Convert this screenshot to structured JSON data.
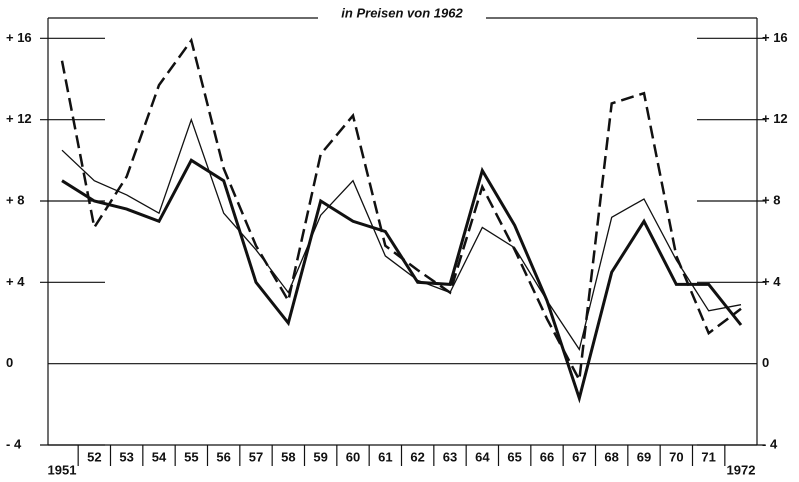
{
  "chart_data": {
    "type": "line",
    "title": "in Preisen von 1962",
    "categories": [
      "1951",
      "52",
      "53",
      "54",
      "55",
      "56",
      "57",
      "58",
      "59",
      "60",
      "61",
      "62",
      "63",
      "64",
      "65",
      "66",
      "67",
      "68",
      "69",
      "70",
      "71",
      "1972"
    ],
    "series": [
      {
        "color": "#111111",
        "line_width": 3,
        "dashed": false,
        "values": [
          9.0,
          8.0,
          7.6,
          7.0,
          10.0,
          9.0,
          4.0,
          2.0,
          8.0,
          7.0,
          6.5,
          4.0,
          3.9,
          9.5,
          6.8,
          3.1,
          -1.7,
          4.5,
          7.0,
          3.9,
          3.9,
          1.9
        ]
      },
      {
        "color": "#111111",
        "line_width": 1.3,
        "dashed": false,
        "values": [
          10.5,
          9.0,
          8.3,
          7.4,
          12.0,
          7.4,
          5.6,
          3.5,
          7.3,
          9.0,
          5.3,
          4.1,
          3.5,
          6.7,
          5.7,
          3.1,
          0.7,
          7.2,
          8.1,
          5.1,
          2.6,
          2.9
        ]
      },
      {
        "color": "#111111",
        "line_width": 2.5,
        "dashed": true,
        "values": [
          14.9,
          6.7,
          9.2,
          13.7,
          15.9,
          9.6,
          5.8,
          3.1,
          10.3,
          12.2,
          5.8,
          4.6,
          3.5,
          8.7,
          5.6,
          2.2,
          -0.8,
          12.8,
          13.3,
          5.3,
          1.5,
          2.7
        ]
      }
    ],
    "ylim": [
      -4,
      17
    ],
    "yticks": [
      {
        "value": -4,
        "label": "- 4"
      },
      0,
      {
        "value": 4,
        "label": "+ 4"
      },
      {
        "value": 8,
        "label": "+ 8"
      },
      {
        "value": 12,
        "label": "+ 12"
      },
      {
        "value": 16,
        "label": "+ 16"
      }
    ],
    "right_axis_labels": true
  }
}
